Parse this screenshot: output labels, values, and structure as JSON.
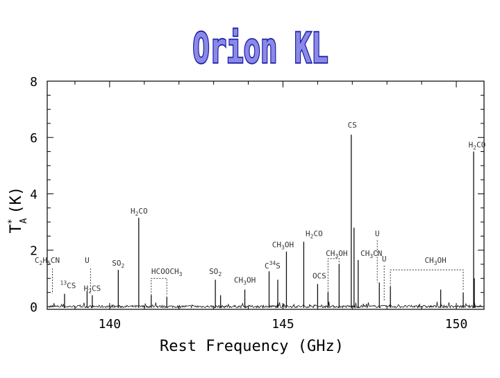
{
  "title": "Orion KL",
  "colors": {
    "title_fill": "#8a8ae6",
    "title_stroke": "#1a1aa8",
    "axis": "#000000",
    "spectrum": "#111111",
    "label": "#333333"
  },
  "chart_data": {
    "type": "line",
    "xlabel": "Rest Frequency (GHz)",
    "ylabel": "T*A (K)",
    "ylabel_main": "T",
    "ylabel_sup": "*",
    "ylabel_sub": "A",
    "ylabel_unit": "(K)",
    "xlim": [
      138.2,
      150.8
    ],
    "ylim": [
      -0.1,
      8
    ],
    "xticks": [
      140,
      145,
      150
    ],
    "xtick_labels": [
      "140",
      "145",
      "150"
    ],
    "yticks": [
      0,
      2,
      4,
      6,
      8
    ],
    "ytick_labels": [
      "0",
      "2",
      "4",
      "6",
      "8"
    ],
    "grid": false,
    "peaks": [
      {
        "x": 138.7,
        "y": 0.45
      },
      {
        "x": 139.35,
        "y": 0.55
      },
      {
        "x": 139.5,
        "y": 0.4
      },
      {
        "x": 140.25,
        "y": 1.3
      },
      {
        "x": 140.84,
        "y": 3.15
      },
      {
        "x": 141.2,
        "y": 0.4
      },
      {
        "x": 141.65,
        "y": 0.35
      },
      {
        "x": 143.05,
        "y": 0.95
      },
      {
        "x": 143.2,
        "y": 0.4
      },
      {
        "x": 143.9,
        "y": 0.6
      },
      {
        "x": 144.6,
        "y": 1.25
      },
      {
        "x": 144.85,
        "y": 0.95
      },
      {
        "x": 145.1,
        "y": 1.95
      },
      {
        "x": 145.6,
        "y": 2.3
      },
      {
        "x": 146.0,
        "y": 0.8
      },
      {
        "x": 146.3,
        "y": 0.5
      },
      {
        "x": 146.62,
        "y": 1.5
      },
      {
        "x": 146.97,
        "y": 6.1
      },
      {
        "x": 147.05,
        "y": 2.8
      },
      {
        "x": 147.17,
        "y": 1.65
      },
      {
        "x": 147.78,
        "y": 0.85
      },
      {
        "x": 148.1,
        "y": 0.7
      },
      {
        "x": 149.55,
        "y": 0.6
      },
      {
        "x": 150.2,
        "y": 0.5
      },
      {
        "x": 150.5,
        "y": 5.5
      },
      {
        "x": 150.52,
        "y": 1.0
      }
    ],
    "annotations": [
      {
        "parts": [
          [
            "C",
            "n"
          ],
          [
            "2",
            "sub"
          ],
          [
            "H",
            "n"
          ],
          [
            "5",
            "sub"
          ],
          [
            "CN",
            "n"
          ]
        ],
        "x": 138.2,
        "y": 1.55,
        "line": {
          "x": 138.35,
          "y1": 1.35,
          "y2": 0.45
        }
      },
      {
        "parts": [
          [
            "U",
            "n"
          ]
        ],
        "x": 139.35,
        "y": 1.55,
        "line": {
          "x": 139.45,
          "y1": 1.35,
          "y2": 0.5
        }
      },
      {
        "parts": [
          [
            "13",
            "sup"
          ],
          [
            "CS",
            "n"
          ]
        ],
        "x": 138.8,
        "y": 0.65
      },
      {
        "parts": [
          [
            "H",
            "n"
          ],
          [
            "2",
            "sub"
          ],
          [
            "CS",
            "n"
          ]
        ],
        "x": 139.5,
        "y": 0.55
      },
      {
        "parts": [
          [
            "SO",
            "n"
          ],
          [
            "2",
            "sub"
          ]
        ],
        "x": 140.25,
        "y": 1.45
      },
      {
        "parts": [
          [
            "H",
            "n"
          ],
          [
            "2",
            "sub"
          ],
          [
            "CO",
            "n"
          ]
        ],
        "x": 140.85,
        "y": 3.3
      },
      {
        "parts": [
          [
            "HCOOCH",
            "n"
          ],
          [
            "3",
            "sub"
          ]
        ],
        "x": 141.65,
        "y": 1.15,
        "bracket": {
          "x1": 141.2,
          "x2": 141.65,
          "y": 1.0,
          "yb": 0.4
        }
      },
      {
        "parts": [
          [
            "SO",
            "n"
          ],
          [
            "2",
            "sub"
          ]
        ],
        "x": 143.05,
        "y": 1.15
      },
      {
        "parts": [
          [
            "CH",
            "n"
          ],
          [
            "3",
            "sub"
          ],
          [
            "OH",
            "n"
          ]
        ],
        "x": 143.9,
        "y": 0.85
      },
      {
        "parts": [
          [
            "C",
            "n"
          ],
          [
            "34",
            "sup"
          ],
          [
            "S",
            "n"
          ]
        ],
        "x": 144.7,
        "y": 1.35
      },
      {
        "parts": [
          [
            "CH",
            "n"
          ],
          [
            "3",
            "sub"
          ],
          [
            "OH",
            "n"
          ]
        ],
        "x": 145.0,
        "y": 2.1
      },
      {
        "parts": [
          [
            "H",
            "n"
          ],
          [
            "2",
            "sub"
          ],
          [
            "CO",
            "n"
          ]
        ],
        "x": 145.9,
        "y": 2.5
      },
      {
        "parts": [
          [
            "OCS",
            "n"
          ]
        ],
        "x": 146.05,
        "y": 1.0
      },
      {
        "parts": [
          [
            "CH",
            "n"
          ],
          [
            "3",
            "sub"
          ],
          [
            "OH",
            "n"
          ]
        ],
        "x": 146.55,
        "y": 1.8,
        "bracket": {
          "x1": 146.3,
          "x2": 146.62,
          "y": 1.7,
          "yb": 0.5
        }
      },
      {
        "parts": [
          [
            "CH",
            "n"
          ],
          [
            "3",
            "sub"
          ],
          [
            "CN",
            "n"
          ]
        ],
        "x": 147.55,
        "y": 1.8
      },
      {
        "parts": [
          [
            "U",
            "n"
          ]
        ],
        "x": 147.72,
        "y": 2.5,
        "line": {
          "x": 147.72,
          "y1": 2.35,
          "y2": 0.85
        }
      },
      {
        "parts": [
          [
            "U",
            "n"
          ]
        ],
        "x": 147.92,
        "y": 1.6,
        "line": {
          "x": 147.92,
          "y1": 1.45,
          "y2": 0.2
        }
      },
      {
        "parts": [
          [
            "CH",
            "n"
          ],
          [
            "3",
            "sub"
          ],
          [
            "OH",
            "n"
          ]
        ],
        "x": 149.4,
        "y": 1.55,
        "bracket": {
          "x1": 148.1,
          "x2": 150.2,
          "y": 1.3,
          "yb": 0.6
        }
      },
      {
        "parts": [
          [
            "CS",
            "n"
          ]
        ],
        "x": 147.0,
        "y": 6.35
      },
      {
        "parts": [
          [
            "H",
            "n"
          ],
          [
            "2",
            "sub"
          ],
          [
            "CO",
            "n"
          ]
        ],
        "x": 150.6,
        "y": 5.65
      }
    ]
  }
}
